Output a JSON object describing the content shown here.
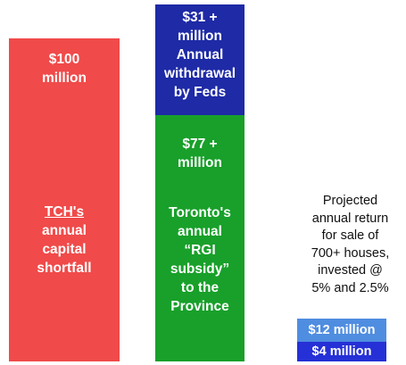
{
  "chart_data": {
    "type": "bar",
    "colors": {
      "shortfall": "#f04a4a",
      "withdrawal": "#1e2aa6",
      "subsidy": "#18a02a",
      "return_high": "#4f8de0",
      "return_low": "#2530d6"
    },
    "bars": [
      {
        "label_amount": "$100 million",
        "label_line1": "$100",
        "label_line2": "million",
        "desc_line1": "TCH's",
        "desc_line2": "annual",
        "desc_line3": "capital",
        "desc_line4": "shortfall",
        "value": 100
      },
      {
        "segments": [
          {
            "name": "Annual withdrawal by Feds",
            "value": 31,
            "line1": "$31 +",
            "line2": "million",
            "line3": "Annual",
            "line4": "withdrawal",
            "line5": "by Feds"
          },
          {
            "name": "Toronto's annual RGI subsidy to the Province",
            "value": 77,
            "line1": "$77 +",
            "line2": "million",
            "desc_line1": "Toronto's",
            "desc_line2": "annual",
            "desc_line3": "“RGI",
            "desc_line4": "subsidy”",
            "desc_line5": "to the",
            "desc_line6": "Province"
          }
        ]
      },
      {
        "caption_line1": "Projected",
        "caption_line2": "annual return",
        "caption_line3": "for sale of",
        "caption_line4": "700+ houses,",
        "caption_line5": "invested @",
        "caption_line6": "5% and 2.5%",
        "segments": [
          {
            "label": "$12 million",
            "value": 12
          },
          {
            "label": "$4 million",
            "value": 4
          }
        ]
      }
    ]
  }
}
